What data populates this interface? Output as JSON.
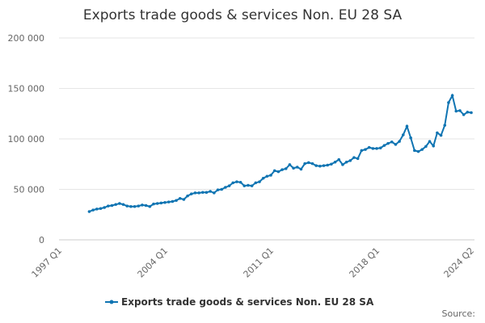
{
  "chart_data": {
    "type": "line",
    "title": "Exports trade goods & services Non. EU 28 SA",
    "source": "Source:",
    "categories": [
      "1997 Q1",
      null,
      null,
      null,
      null,
      null,
      null,
      null,
      null,
      null,
      null,
      null,
      null,
      null,
      null,
      null,
      null,
      null,
      null,
      null,
      null,
      null,
      null,
      null,
      null,
      null,
      null,
      null,
      "2004 Q1",
      null,
      null,
      null,
      null,
      null,
      null,
      null,
      null,
      null,
      null,
      null,
      null,
      null,
      null,
      null,
      null,
      null,
      null,
      null,
      null,
      null,
      null,
      null,
      null,
      null,
      null,
      null,
      "2011 Q1",
      null,
      null,
      null,
      null,
      null,
      null,
      null,
      null,
      null,
      null,
      null,
      null,
      null,
      null,
      null,
      null,
      null,
      null,
      null,
      null,
      null,
      null,
      null,
      null,
      null,
      null,
      null,
      "2018 Q1",
      null,
      null,
      null,
      null,
      null,
      null,
      null,
      null,
      null,
      null,
      null,
      null,
      null,
      null,
      null,
      null,
      null,
      null,
      null,
      null,
      null,
      null,
      null,
      null,
      "2024 Q2"
    ],
    "series": [
      {
        "name": "Exports trade goods & services Non. EU 28 SA",
        "color": "#0f74b2",
        "values": [
          null,
          null,
          null,
          null,
          null,
          null,
          null,
          null,
          28000,
          29500,
          30500,
          31000,
          32000,
          33500,
          34000,
          35000,
          36000,
          35000,
          33500,
          33000,
          33000,
          33500,
          34500,
          34000,
          33000,
          35500,
          36000,
          36500,
          37000,
          37500,
          38000,
          39000,
          41000,
          40000,
          43500,
          45500,
          46500,
          46500,
          47000,
          47000,
          48000,
          46500,
          49500,
          50000,
          52000,
          53500,
          56500,
          57500,
          57000,
          53500,
          54000,
          53500,
          56500,
          57500,
          61000,
          63000,
          64000,
          68500,
          67500,
          69500,
          70500,
          74500,
          71000,
          72000,
          70000,
          75500,
          76500,
          75500,
          73500,
          73000,
          73500,
          74000,
          75000,
          77000,
          79500,
          74500,
          77000,
          78500,
          81500,
          80500,
          88500,
          89500,
          91500,
          90500,
          90500,
          91000,
          93500,
          95500,
          97000,
          94500,
          97500,
          104000,
          112500,
          101000,
          88500,
          87500,
          89500,
          92500,
          97500,
          93000,
          106000,
          103500,
          113500,
          136000,
          143000,
          127500,
          128000,
          124000,
          126500,
          126000
        ]
      }
    ],
    "ylim": [
      0,
      200000
    ],
    "yticks": [
      0,
      {
        "value": 50000,
        "label": "50 000"
      },
      {
        "value": 100000,
        "label": "100 000"
      },
      {
        "value": 150000,
        "label": "150 000"
      },
      {
        "value": 200000,
        "label": "200 000"
      }
    ],
    "grid": true
  }
}
